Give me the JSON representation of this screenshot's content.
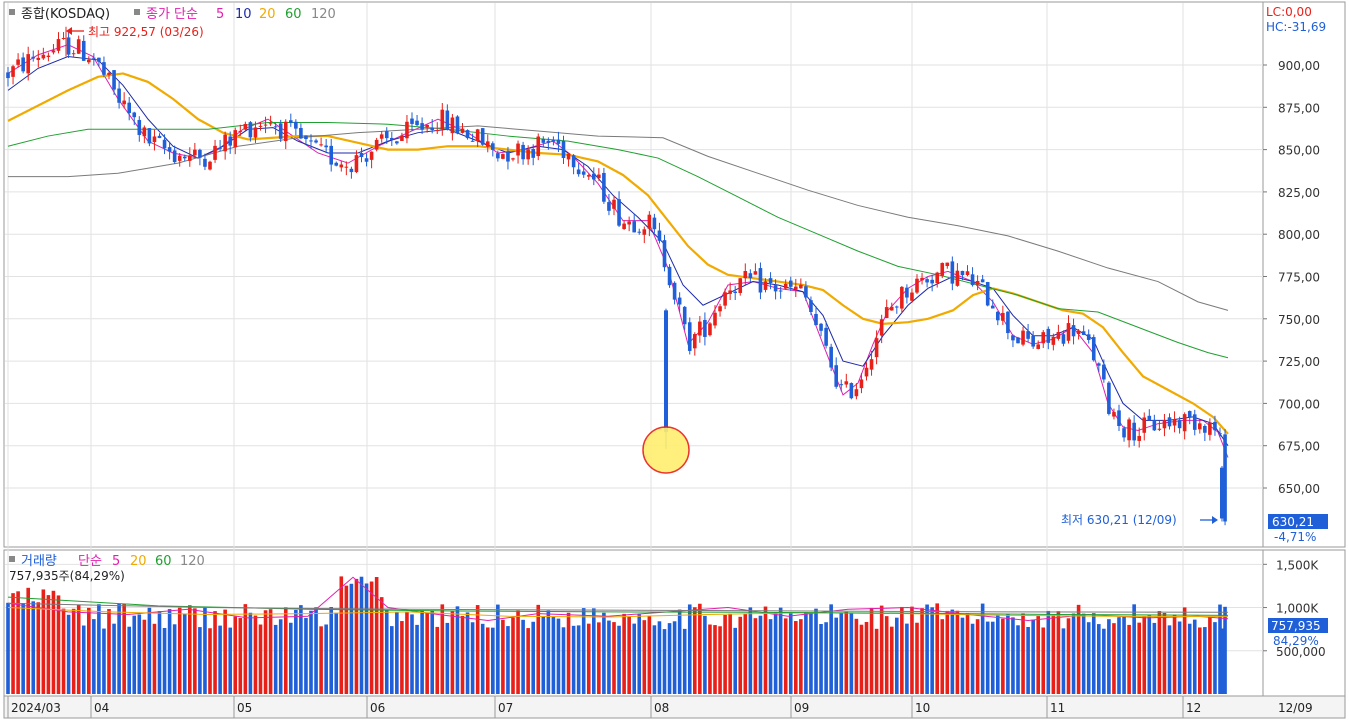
{
  "price_header": {
    "title": "종합(KOSDAQ)",
    "ma_label": "종가 단순",
    "ma_periods": [
      "5",
      "10",
      "20",
      "60",
      "120"
    ]
  },
  "volume_header": {
    "title": "거래량",
    "ma_label": "단순",
    "ma_periods": [
      "5",
      "20",
      "60",
      "120"
    ],
    "current_text": "757,935주(84,29%)"
  },
  "corner": {
    "lc": "LC:0,00",
    "hc": "HC:-31,69"
  },
  "annotations": {
    "high": "최고 922,57 (03/26)",
    "low": "최저 630,21 (12/09)"
  },
  "last_price": {
    "value": "630,21",
    "change": "-4,71%"
  },
  "last_volume": {
    "value": "757,935",
    "pct": "84,29%"
  },
  "colors": {
    "up": "#e8201a",
    "down": "#1f5fd8",
    "ma5": "#e020b0",
    "ma10": "#1c2aa8",
    "ma20": "#f0aa00",
    "ma60": "#20a030",
    "ma120": "#7a7a7a",
    "highlight": "#ffd400"
  },
  "chart_data": [
    {
      "type": "candlestick",
      "title": "종합(KOSDAQ)",
      "y_ticks": [
        "900,00",
        "875,00",
        "850,00",
        "825,00",
        "800,00",
        "775,00",
        "750,00",
        "725,00",
        "700,00",
        "675,00",
        "650,00"
      ],
      "ylim": [
        625,
        922.57
      ],
      "x_ticks": [
        "2024/03",
        "04",
        "05",
        "06",
        "07",
        "08",
        "09",
        "10",
        "11",
        "12"
      ],
      "x_right_label": "12/09",
      "grid": true,
      "ohlc_summary": {
        "period_high": 922.57,
        "period_high_date": "03/26",
        "period_low": 630.21,
        "period_low_date": "12/09",
        "last_close": 630.21,
        "last_change_pct": -4.71
      },
      "moving_averages": [
        {
          "name": "5",
          "points": [
            [
              0,
              895
            ],
            [
              30,
              906
            ],
            [
              60,
              912
            ],
            [
              85,
              905
            ],
            [
              110,
              880
            ],
            [
              140,
              855
            ],
            [
              165,
              848
            ],
            [
              190,
              845
            ],
            [
              210,
              850
            ],
            [
              235,
              862
            ],
            [
              260,
              868
            ],
            [
              285,
              858
            ],
            [
              310,
              848
            ],
            [
              340,
              842
            ],
            [
              370,
              852
            ],
            [
              400,
              860
            ],
            [
              430,
              868
            ],
            [
              460,
              860
            ],
            [
              490,
              848
            ],
            [
              515,
              850
            ],
            [
              545,
              855
            ],
            [
              565,
              846
            ],
            [
              590,
              830
            ],
            [
              615,
              808
            ],
            [
              640,
              808
            ],
            [
              660,
              780
            ],
            [
              680,
              735
            ],
            [
              700,
              748
            ],
            [
              720,
              770
            ],
            [
              745,
              772
            ],
            [
              770,
              768
            ],
            [
              795,
              766
            ],
            [
              815,
              735
            ],
            [
              835,
              705
            ],
            [
              850,
              712
            ],
            [
              865,
              735
            ],
            [
              880,
              755
            ],
            [
              900,
              768
            ],
            [
              920,
              775
            ],
            [
              940,
              778
            ],
            [
              965,
              772
            ],
            [
              985,
              760
            ],
            [
              1005,
              740
            ],
            [
              1025,
              735
            ],
            [
              1045,
              738
            ],
            [
              1065,
              745
            ],
            [
              1085,
              730
            ],
            [
              1100,
              700
            ],
            [
              1115,
              686
            ],
            [
              1130,
              684
            ],
            [
              1150,
              688
            ],
            [
              1175,
              690
            ],
            [
              1195,
              690
            ],
            [
              1210,
              683
            ],
            [
              1220,
              668
            ]
          ]
        },
        {
          "name": "10",
          "points": [
            [
              0,
              885
            ],
            [
              30,
              898
            ],
            [
              60,
              905
            ],
            [
              90,
              903
            ],
            [
              115,
              888
            ],
            [
              140,
              868
            ],
            [
              165,
              852
            ],
            [
              190,
              845
            ],
            [
              215,
              852
            ],
            [
              240,
              862
            ],
            [
              265,
              863
            ],
            [
              290,
              855
            ],
            [
              320,
              848
            ],
            [
              350,
              848
            ],
            [
              380,
              855
            ],
            [
              410,
              860
            ],
            [
              440,
              862
            ],
            [
              470,
              855
            ],
            [
              500,
              848
            ],
            [
              530,
              852
            ],
            [
              555,
              850
            ],
            [
              580,
              840
            ],
            [
              605,
              823
            ],
            [
              630,
              810
            ],
            [
              655,
              795
            ],
            [
              675,
              770
            ],
            [
              695,
              758
            ],
            [
              720,
              765
            ],
            [
              745,
              772
            ],
            [
              770,
              770
            ],
            [
              795,
              766
            ],
            [
              815,
              752
            ],
            [
              835,
              725
            ],
            [
              855,
              722
            ],
            [
              875,
              740
            ],
            [
              900,
              758
            ],
            [
              920,
              768
            ],
            [
              945,
              775
            ],
            [
              965,
              772
            ],
            [
              985,
              768
            ],
            [
              1005,
              752
            ],
            [
              1025,
              740
            ],
            [
              1045,
              740
            ],
            [
              1065,
              745
            ],
            [
              1085,
              738
            ],
            [
              1100,
              718
            ],
            [
              1115,
              700
            ],
            [
              1135,
              690
            ],
            [
              1160,
              690
            ],
            [
              1185,
              692
            ],
            [
              1205,
              688
            ],
            [
              1220,
              675
            ]
          ]
        },
        {
          "name": "20",
          "points": [
            [
              0,
              867
            ],
            [
              30,
              876
            ],
            [
              60,
              885
            ],
            [
              90,
              893
            ],
            [
              115,
              895
            ],
            [
              140,
              890
            ],
            [
              165,
              880
            ],
            [
              190,
              868
            ],
            [
              215,
              860
            ],
            [
              240,
              856
            ],
            [
              265,
              857
            ],
            [
              290,
              858
            ],
            [
              320,
              858
            ],
            [
              350,
              854
            ],
            [
              380,
              850
            ],
            [
              410,
              850
            ],
            [
              440,
              852
            ],
            [
              470,
              852
            ],
            [
              500,
              850
            ],
            [
              530,
              848
            ],
            [
              560,
              847
            ],
            [
              590,
              843
            ],
            [
              615,
              835
            ],
            [
              640,
              823
            ],
            [
              660,
              808
            ],
            [
              680,
              793
            ],
            [
              700,
              782
            ],
            [
              720,
              776
            ],
            [
              745,
              774
            ],
            [
              770,
              772
            ],
            [
              795,
              770
            ],
            [
              815,
              767
            ],
            [
              835,
              758
            ],
            [
              855,
              750
            ],
            [
              875,
              747
            ],
            [
              900,
              748
            ],
            [
              920,
              750
            ],
            [
              945,
              755
            ],
            [
              965,
              764
            ],
            [
              985,
              768
            ],
            [
              1005,
              765
            ],
            [
              1030,
              760
            ],
            [
              1055,
              755
            ],
            [
              1075,
              753
            ],
            [
              1095,
              745
            ],
            [
              1115,
              730
            ],
            [
              1135,
              716
            ],
            [
              1160,
              708
            ],
            [
              1185,
              700
            ],
            [
              1205,
              692
            ],
            [
              1220,
              682
            ]
          ]
        },
        {
          "name": "60",
          "points": [
            [
              0,
              852
            ],
            [
              40,
              858
            ],
            [
              80,
              862
            ],
            [
              140,
              862
            ],
            [
              200,
              862
            ],
            [
              260,
              866
            ],
            [
              320,
              866
            ],
            [
              380,
              865
            ],
            [
              440,
              862
            ],
            [
              500,
              858
            ],
            [
              560,
              855
            ],
            [
              610,
              850
            ],
            [
              650,
              845
            ],
            [
              690,
              834
            ],
            [
              730,
              822
            ],
            [
              770,
              810
            ],
            [
              810,
              800
            ],
            [
              850,
              790
            ],
            [
              890,
              781
            ],
            [
              930,
              776
            ],
            [
              970,
              770
            ],
            [
              1010,
              764
            ],
            [
              1050,
              756
            ],
            [
              1090,
              754
            ],
            [
              1130,
              745
            ],
            [
              1170,
              736
            ],
            [
              1200,
              730
            ],
            [
              1220,
              727
            ]
          ]
        },
        {
          "name": "120",
          "points": [
            [
              0,
              834
            ],
            [
              60,
              834
            ],
            [
              110,
              836
            ],
            [
              170,
              842
            ],
            [
              230,
              852
            ],
            [
              290,
              857
            ],
            [
              350,
              860
            ],
            [
              410,
              862
            ],
            [
              470,
              864
            ],
            [
              530,
              861
            ],
            [
              590,
              858
            ],
            [
              655,
              857
            ],
            [
              700,
              846
            ],
            [
              750,
              836
            ],
            [
              800,
              826
            ],
            [
              850,
              817
            ],
            [
              900,
              810
            ],
            [
              950,
              805
            ],
            [
              1000,
              799
            ],
            [
              1050,
              790
            ],
            [
              1100,
              780
            ],
            [
              1150,
              772
            ],
            [
              1190,
              760
            ],
            [
              1220,
              755
            ]
          ]
        }
      ]
    },
    {
      "type": "bar",
      "title": "거래량",
      "y_ticks": [
        "1,500K",
        "1,000K",
        "500,000"
      ],
      "ylim": [
        0,
        1550000
      ],
      "last_value": 757935,
      "moving_averages": [
        "5",
        "20",
        "60",
        "120"
      ]
    }
  ]
}
